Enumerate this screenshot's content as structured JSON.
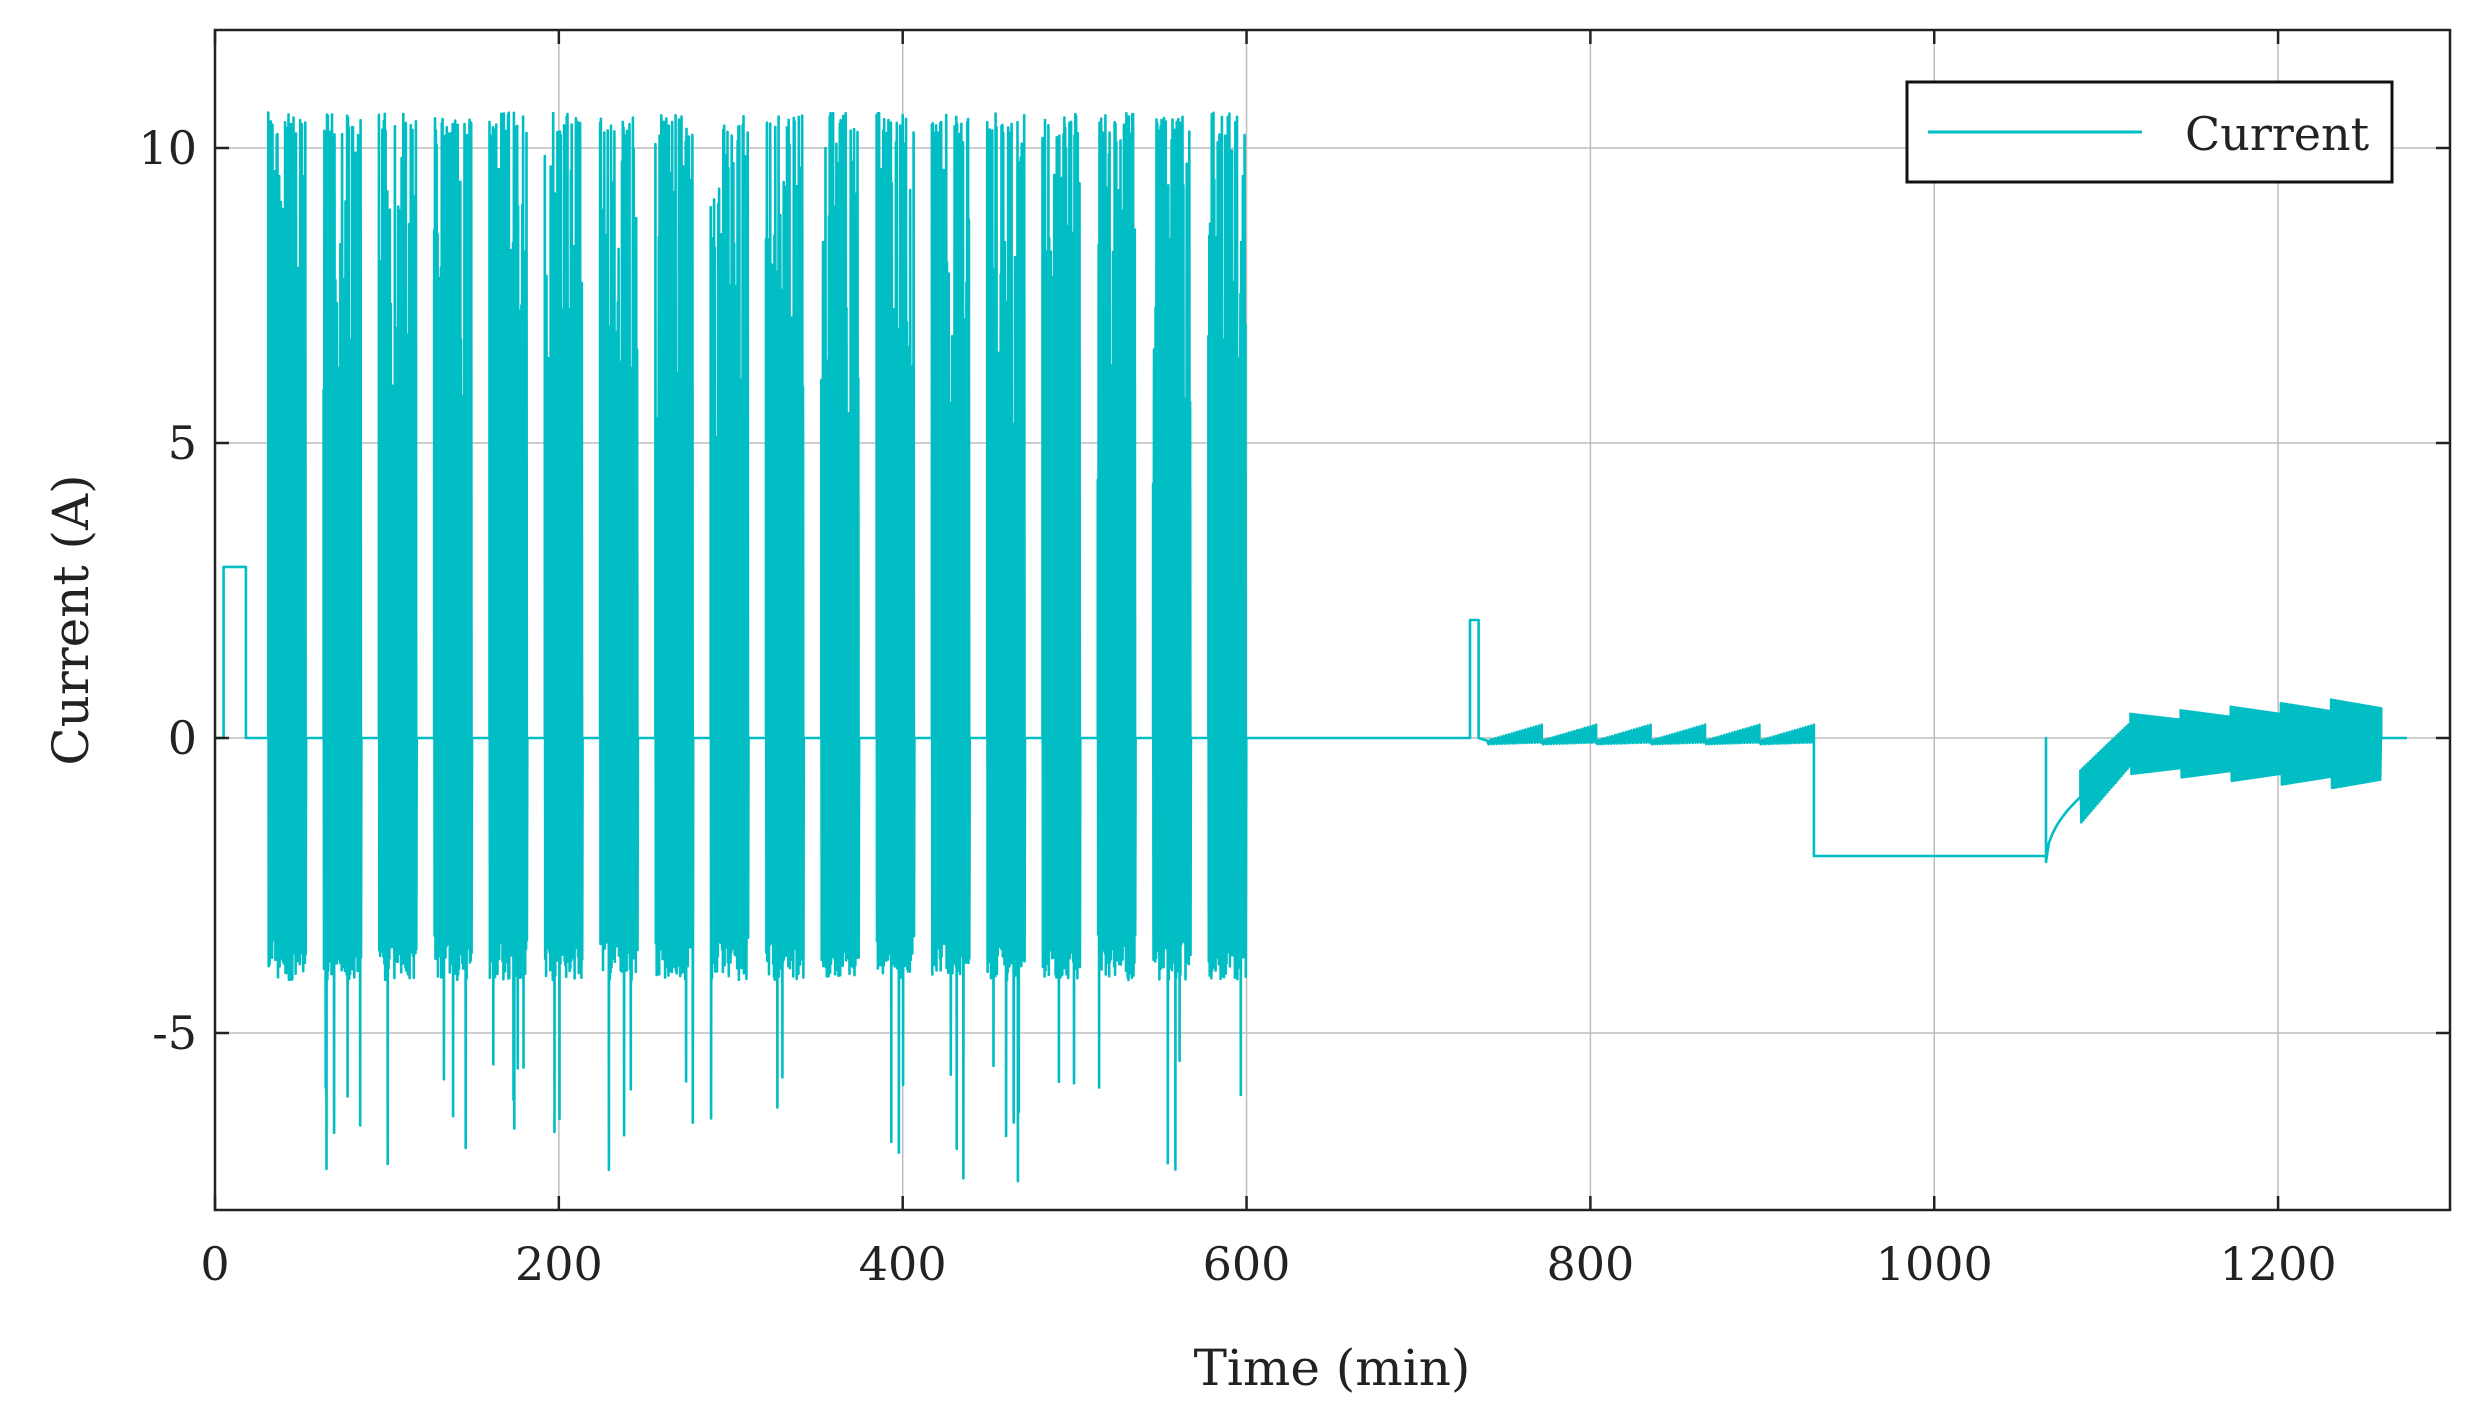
{
  "chart_data": {
    "type": "line",
    "title": "",
    "xlabel": "Time (min)",
    "ylabel": "Current (A)",
    "xlim": [
      0,
      1300
    ],
    "ylim": [
      -8,
      12
    ],
    "xticks": [
      0,
      200,
      400,
      600,
      800,
      1000,
      1200
    ],
    "xtick_labels": [
      "0",
      "200",
      "400",
      "600",
      "800",
      "1000",
      "1200"
    ],
    "yticks": [
      -5,
      0,
      5,
      10
    ],
    "ytick_labels": [
      "-5",
      "0",
      "5",
      "10"
    ],
    "grid": true,
    "legend_position": "top-right",
    "series": [
      {
        "name": "Current",
        "color": "#00BEC4",
        "phases": [
          {
            "kind": "rest",
            "x_start": 0,
            "x_end": 5,
            "y": 0
          },
          {
            "kind": "constant",
            "x_start": 5,
            "x_end": 18,
            "y": 2.9
          },
          {
            "kind": "rest",
            "x_start": 18,
            "x_end": 31,
            "y": 0
          },
          {
            "kind": "dynamic_bursts",
            "x_start": 31,
            "x_end": 610,
            "cycles": 18,
            "burst_duration": 22,
            "y_max": 10.6,
            "y_min": -7.6,
            "y_typical_low": -3.7
          },
          {
            "kind": "rest",
            "x_start": 610,
            "x_end": 730,
            "y": 0
          },
          {
            "kind": "pulse",
            "x_start": 730,
            "x_end": 735,
            "y": 2.0
          },
          {
            "kind": "decaying_oscillation",
            "x_start": 740,
            "x_end": 930,
            "amplitude_max": 0.25
          },
          {
            "kind": "constant",
            "x_start": 930,
            "x_end": 1065,
            "y": -2.0
          },
          {
            "kind": "recovery_ramp",
            "x_start": 1065,
            "x_end": 1085,
            "y_start": -2.1,
            "y_end": -1.0
          },
          {
            "kind": "growing_oscillation",
            "x_start": 1085,
            "x_end": 1260,
            "amplitude_max": 0.75
          },
          {
            "kind": "rest",
            "x_start": 1260,
            "x_end": 1275,
            "y": 0
          }
        ]
      }
    ]
  }
}
